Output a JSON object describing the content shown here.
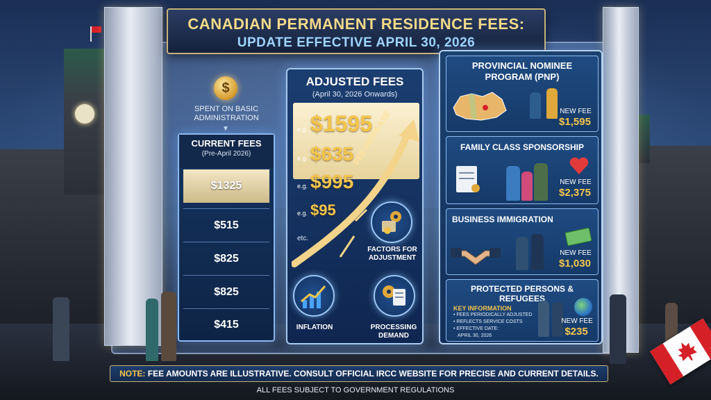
{
  "title": {
    "line1": "CANADIAN PERMANENT RESIDENCE FEES:",
    "line2": "UPDATE EFFECTIVE APRIL 30, 2026"
  },
  "spent": {
    "coin_symbol": "$",
    "text": "SPENT ON BASIC ADMINISTRATION",
    "arrow": "▼"
  },
  "current_fees": {
    "heading": "CURRENT FEES",
    "subheading": "(Pre-April 2026)",
    "values": [
      "$1325",
      "$515",
      "$825",
      "$825",
      "$415"
    ]
  },
  "adjusted_fees": {
    "heading": "ADJUSTED FEES",
    "subheading": "(April 30, 2026 Onwards)",
    "prefix": "e.g.",
    "values": [
      "$1595",
      "$635",
      "$995",
      "$95"
    ],
    "more": "etc.",
    "trend_label": "FEE INCREASE",
    "factors": {
      "adjustment": "FACTORS FOR ADJUSTMENT",
      "inflation": "INFLATION",
      "demand": "PROCESSING DEMAND"
    }
  },
  "programs": {
    "new_fee_label": "NEW FEE",
    "items": [
      {
        "title": "PROVINCIAL NOMINEE PROGRAM (PNP)",
        "fee": "$1,595"
      },
      {
        "title": "FAMILY CLASS SPONSORSHIP",
        "fee": "$2,375"
      },
      {
        "title": "BUSINESS IMMIGRATION",
        "fee": "$1,030"
      },
      {
        "title": "PROTECTED PERSONS & REFUGEES",
        "fee": "$235"
      }
    ],
    "key_info": {
      "title": "KEY INFORMATION",
      "items": [
        "• FEES PERIODICALLY ADJUSTED",
        "• REFLECTS SERVICE COSTS",
        "• EFFECTIVE DATE:",
        "APRIL 30, 2026"
      ]
    }
  },
  "note": {
    "lead": "NOTE:",
    "text": " FEE AMOUNTS ARE ILLUSTRATIVE. CONSULT OFFICIAL IRCC WEBSITE FOR PRECISE AND CURRENT DETAILS."
  },
  "footer": "ALL FEES SUBJECT TO GOVERNMENT REGULATIONS",
  "icons": {
    "flag": "canada-flag-icon",
    "coin": "dollar-coin-icon",
    "maple_leaf": "maple-leaf-icon"
  },
  "colors": {
    "gold": "#f5c54a",
    "panel_blue": "#163a68",
    "flag_red": "#d62027"
  }
}
